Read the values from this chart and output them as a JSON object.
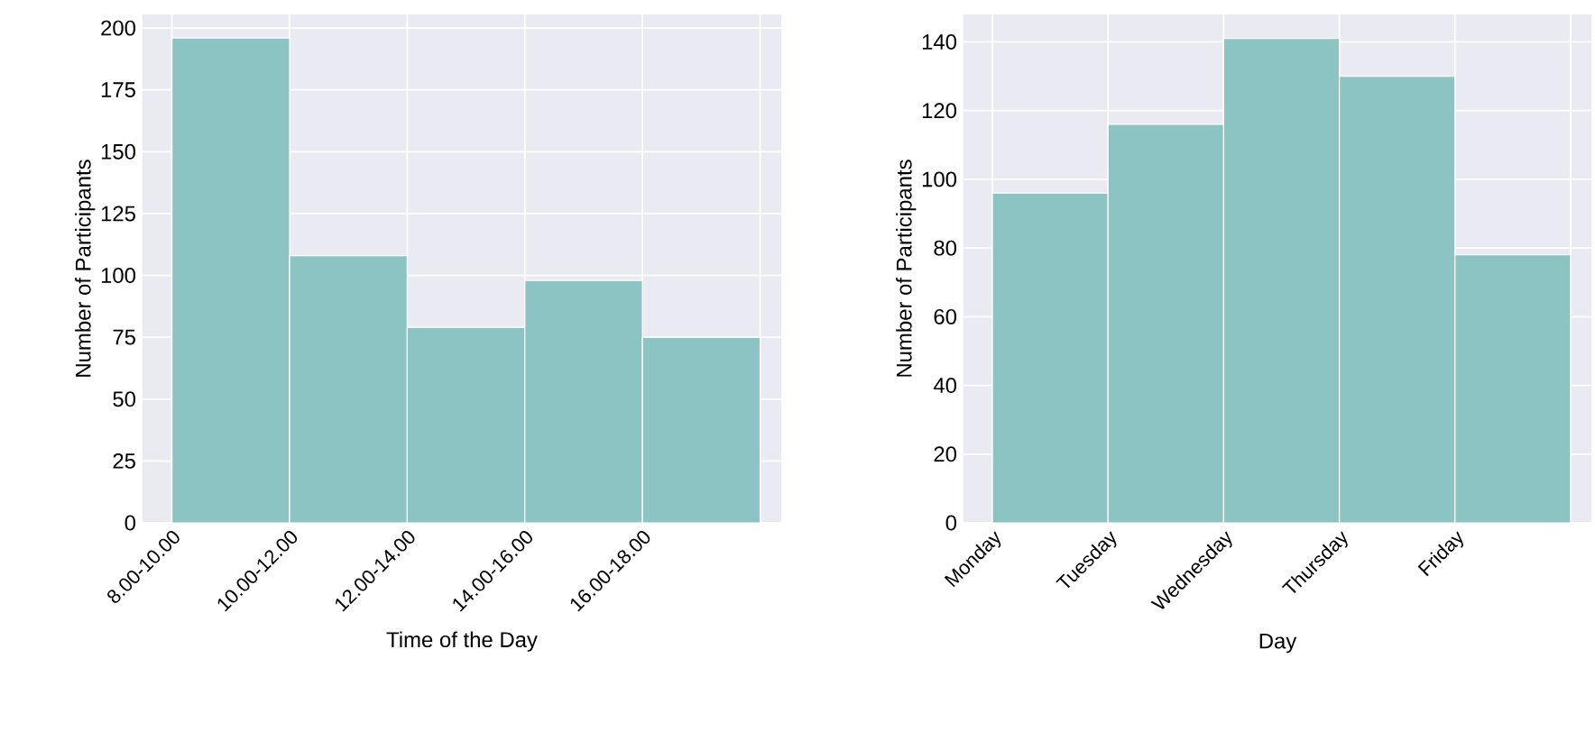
{
  "chart_data": [
    {
      "type": "bar",
      "xlabel": "Time of the Day",
      "ylabel": "Number of Participants",
      "categories": [
        "8.00-10.00",
        "10.00-12.00",
        "12.00-14.00",
        "14.00-16.00",
        "16.00-18.00"
      ],
      "values": [
        196,
        108,
        79,
        98,
        75
      ],
      "color": "#8cc4c4",
      "ylim": [
        0,
        205.5
      ],
      "yticks": [
        0,
        25,
        50,
        75,
        100,
        125,
        150,
        175,
        200
      ],
      "grid": true
    },
    {
      "type": "bar",
      "xlabel": "Day",
      "ylabel": "Number of Participants",
      "categories": [
        "Monday",
        "Tuesday",
        "Wednesday",
        "Thursday",
        "Friday"
      ],
      "values": [
        96,
        116,
        141,
        130,
        78
      ],
      "color": "#8cc4c4",
      "ylim": [
        0,
        148
      ],
      "yticks": [
        0,
        20,
        40,
        60,
        80,
        100,
        120,
        140
      ],
      "grid": true
    }
  ]
}
